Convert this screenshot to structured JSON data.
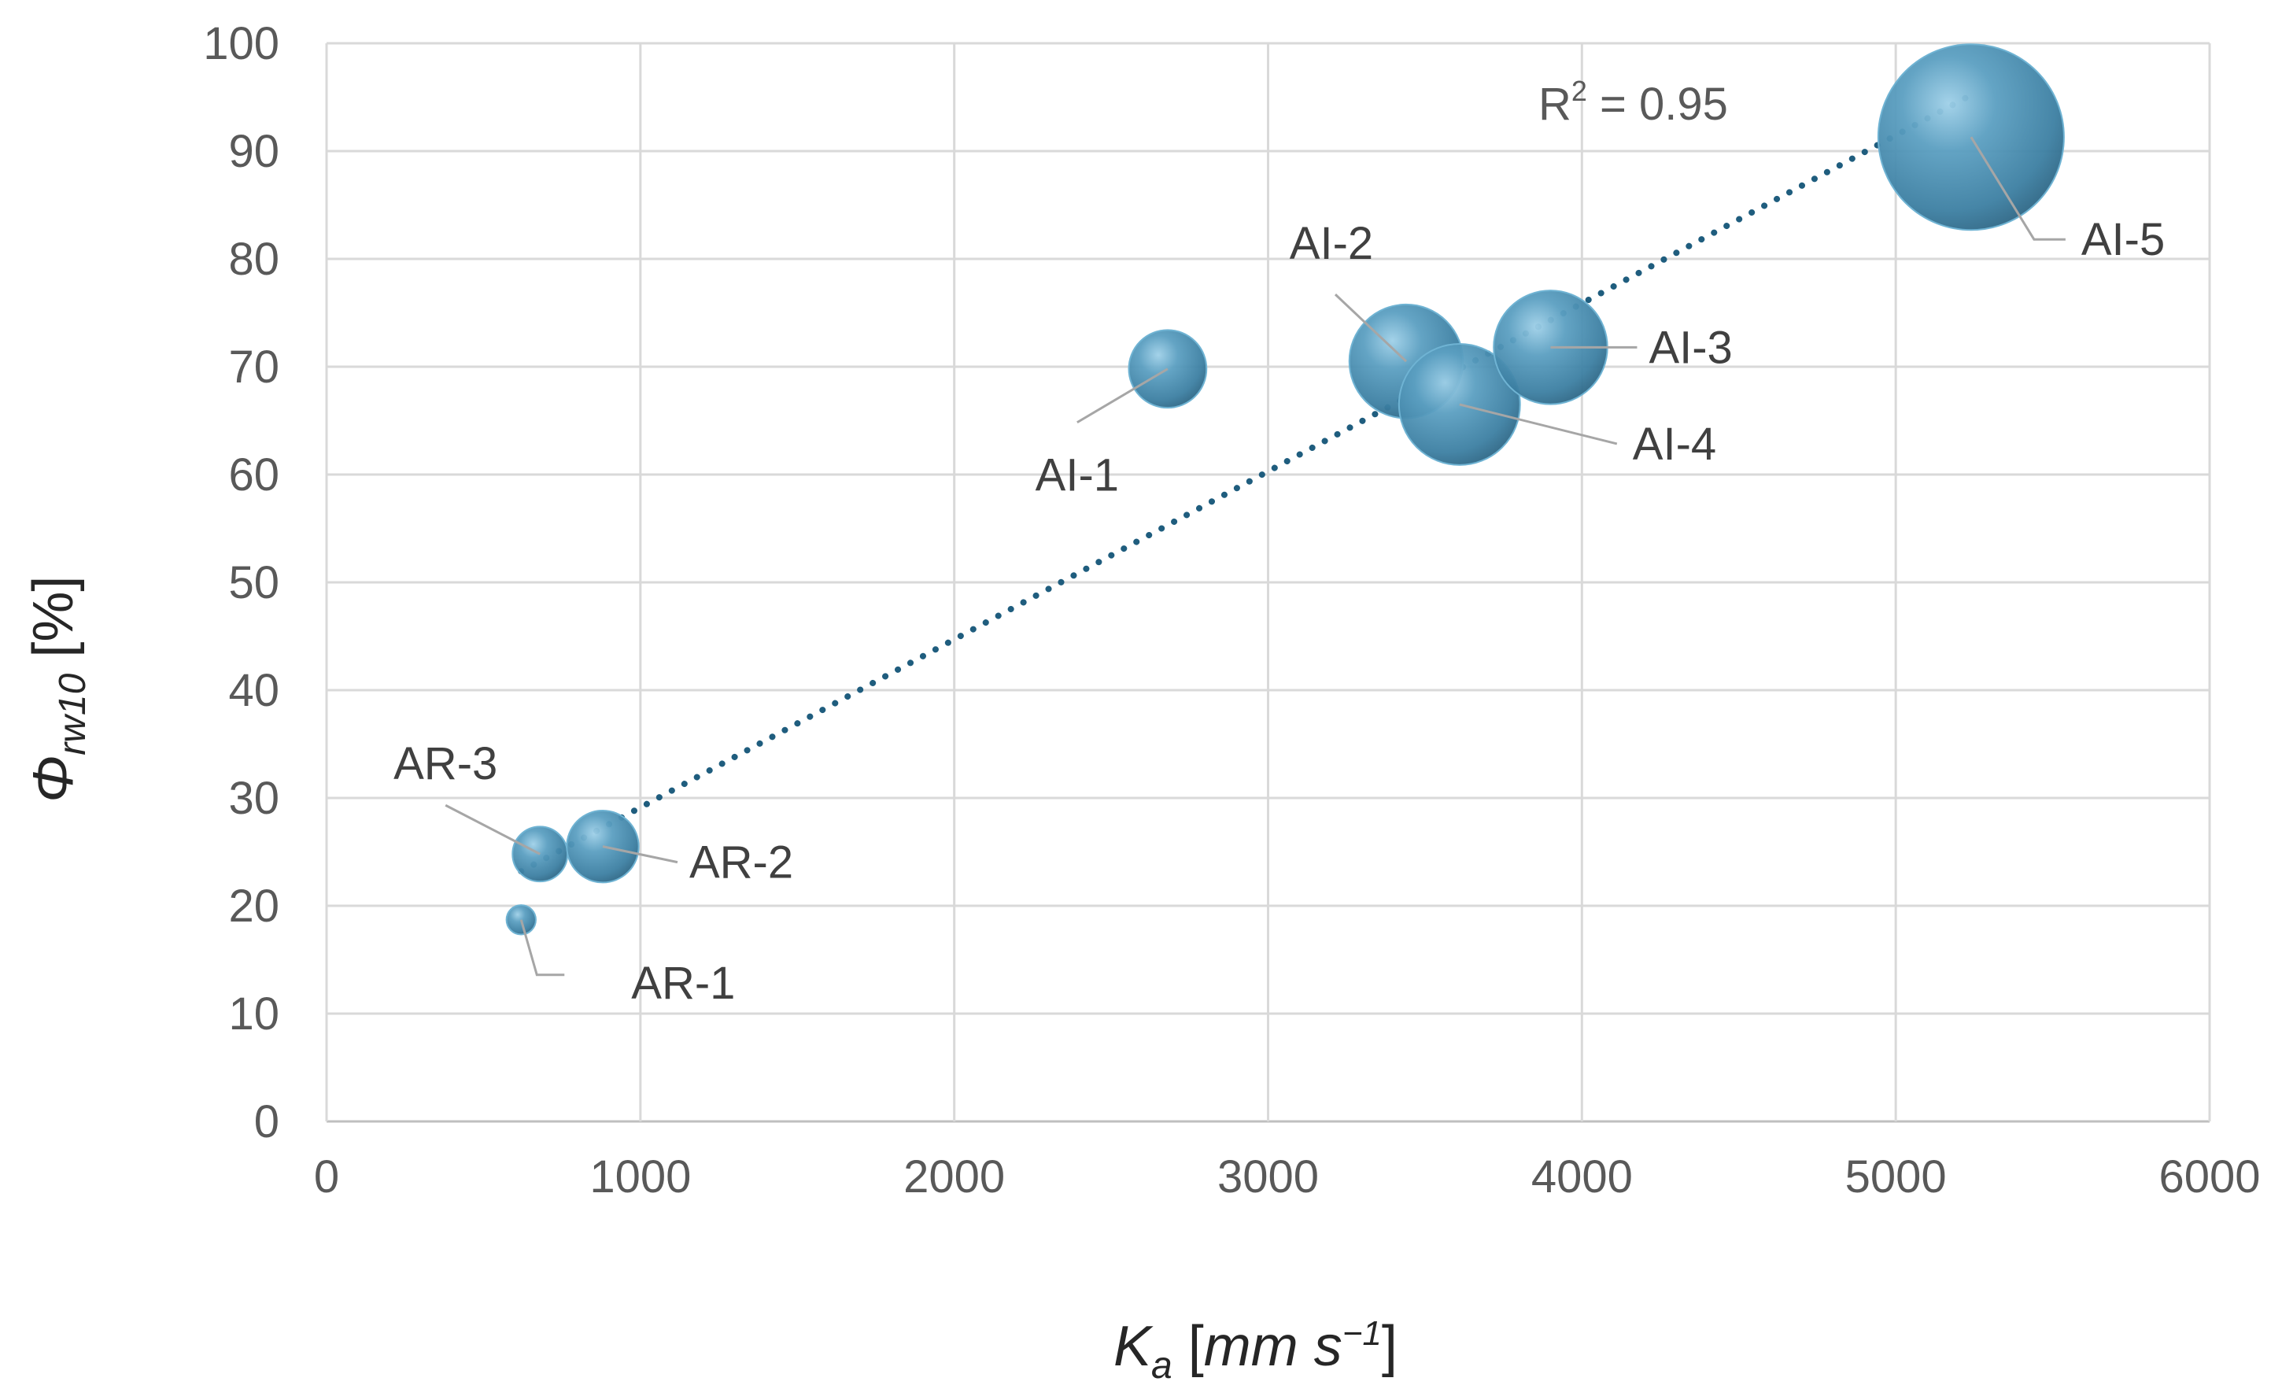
{
  "chart_data": {
    "type": "bubble",
    "x_axis": {
      "symbol": "K",
      "subscript": "a",
      "unit_open": " [",
      "unit": "mm s",
      "unit_exp": "−1",
      "unit_close": "]",
      "range": [
        0,
        6000
      ],
      "ticks": [
        "0",
        "1000",
        "2000",
        "3000",
        "4000",
        "5000",
        "6000"
      ]
    },
    "y_axis": {
      "symbol": "Φ",
      "subscript": "rw10",
      "unit": " [%]",
      "range": [
        0,
        100
      ],
      "ticks": [
        "0",
        "10",
        "20",
        "30",
        "40",
        "50",
        "60",
        "70",
        "80",
        "90",
        "100"
      ]
    },
    "grid": true,
    "series": [
      {
        "name": "samples",
        "color": "#3f83a5",
        "points": [
          {
            "label": "AR-1",
            "x": 620,
            "y": 18.7,
            "size": 1
          },
          {
            "label": "AR-3",
            "x": 680,
            "y": 24.8,
            "size": 3.5
          },
          {
            "label": "AR-2",
            "x": 880,
            "y": 25.5,
            "size": 6
          },
          {
            "label": "AI-1",
            "x": 2680,
            "y": 69.8,
            "size": 7
          },
          {
            "label": "AI-2",
            "x": 3440,
            "y": 70.5,
            "size": 15
          },
          {
            "label": "AI-4",
            "x": 3610,
            "y": 66.5,
            "size": 17
          },
          {
            "label": "AI-3",
            "x": 3900,
            "y": 71.8,
            "size": 15
          },
          {
            "label": "AI-5",
            "x": 5240,
            "y": 91.3,
            "size": 40
          }
        ]
      }
    ],
    "trendline": {
      "type": "linear",
      "style": "dotted",
      "color": "#1f5d7e",
      "x_start": 620,
      "y_start": 23.2,
      "x_end": 5240,
      "y_end": 95.2,
      "r2_prefix": "R",
      "r2_exp": "2",
      "r2_value": " = 0.95"
    }
  }
}
